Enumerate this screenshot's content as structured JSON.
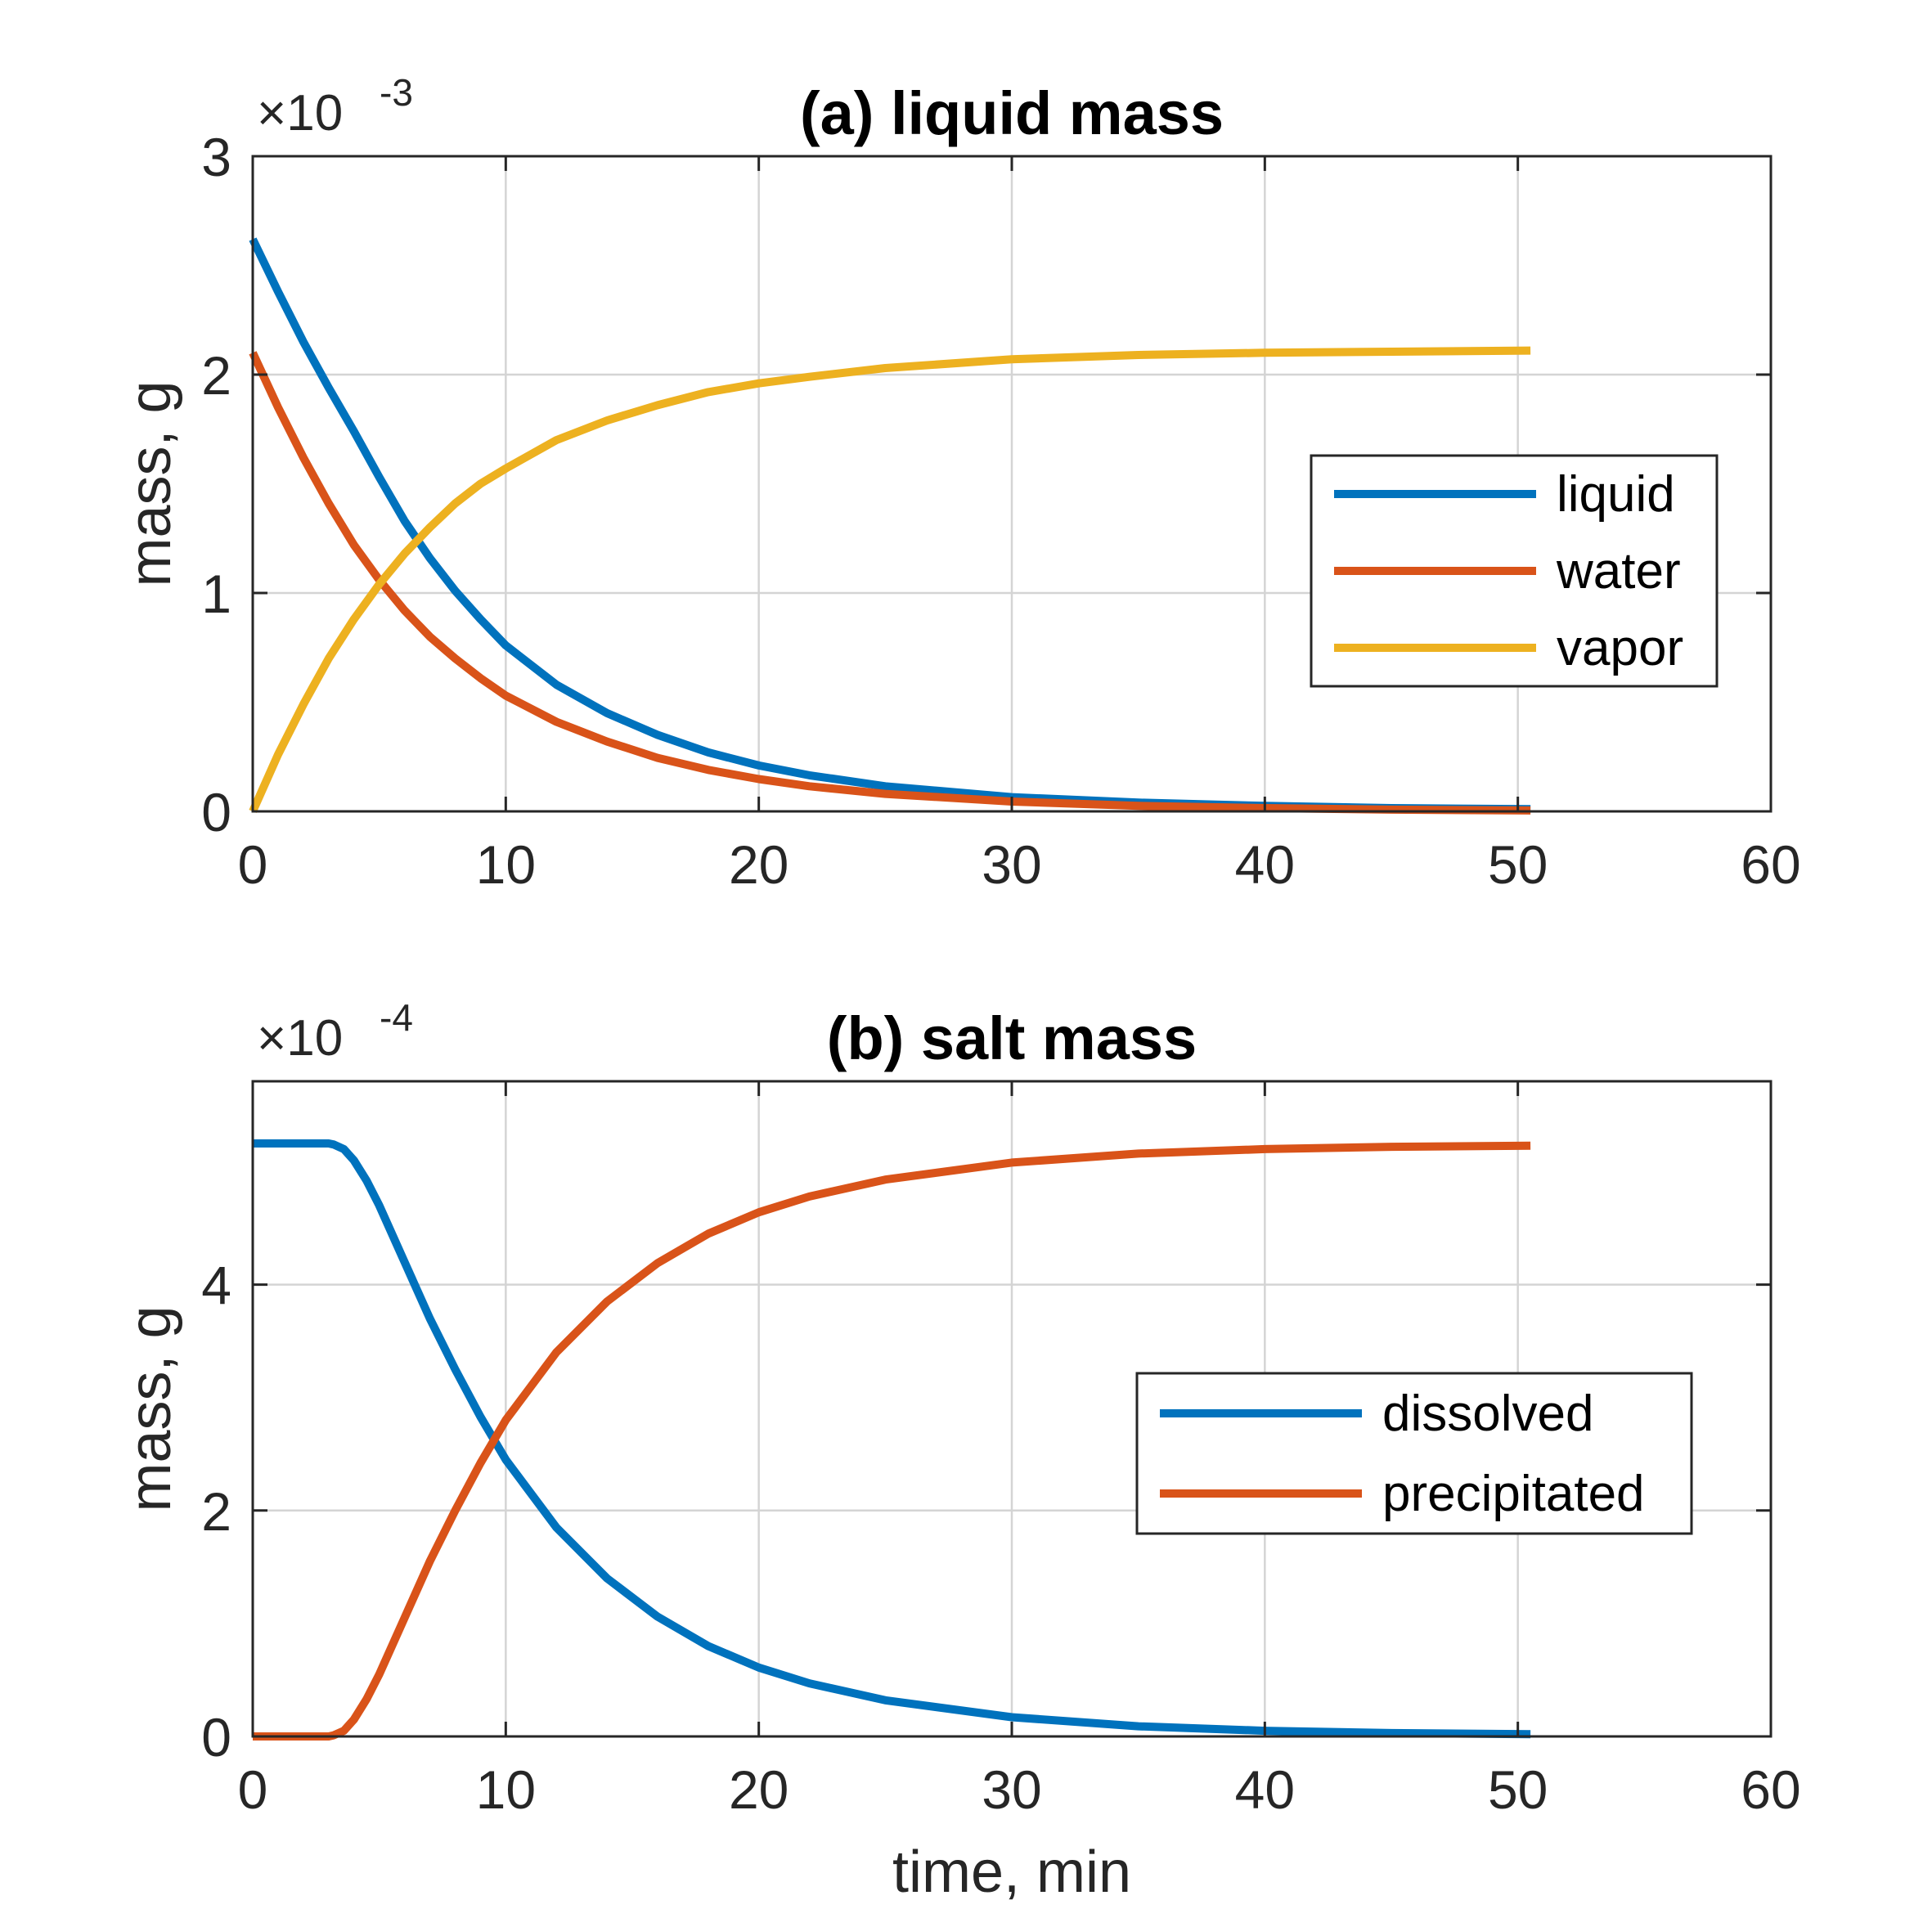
{
  "chart_data": [
    {
      "type": "line",
      "title": "(a) liquid mass",
      "xlabel": "",
      "ylabel": "mass, g",
      "xlim": [
        0,
        60
      ],
      "ylim": [
        0,
        3
      ],
      "xticks": [
        0,
        10,
        20,
        30,
        40,
        50,
        60
      ],
      "yticks": [
        0,
        1,
        2,
        3
      ],
      "y_exponent_base": "×10",
      "y_exponent_power": "-3",
      "grid": true,
      "legend_position": "right",
      "x": [
        0,
        1,
        2,
        3,
        4,
        5,
        6,
        7,
        8,
        9,
        10,
        12,
        14,
        16,
        18,
        20,
        22,
        25,
        30,
        35,
        40,
        45,
        50.5
      ],
      "series": [
        {
          "name": "liquid",
          "color": "#0072BD",
          "values": [
            2.62,
            2.38,
            2.15,
            1.94,
            1.74,
            1.53,
            1.33,
            1.16,
            1.01,
            0.88,
            0.76,
            0.58,
            0.45,
            0.35,
            0.27,
            0.21,
            0.165,
            0.115,
            0.065,
            0.04,
            0.025,
            0.015,
            0.01
          ]
        },
        {
          "name": "water",
          "color": "#D95319",
          "values": [
            2.1,
            1.85,
            1.62,
            1.41,
            1.22,
            1.06,
            0.92,
            0.8,
            0.7,
            0.61,
            0.53,
            0.41,
            0.32,
            0.245,
            0.19,
            0.148,
            0.115,
            0.08,
            0.045,
            0.025,
            0.015,
            0.008,
            0.004
          ]
        },
        {
          "name": "vapor",
          "color": "#EDB120",
          "values": [
            0.0,
            0.26,
            0.49,
            0.7,
            0.88,
            1.04,
            1.18,
            1.3,
            1.41,
            1.5,
            1.57,
            1.7,
            1.79,
            1.86,
            1.92,
            1.96,
            1.99,
            2.03,
            2.07,
            2.09,
            2.1,
            2.105,
            2.11
          ]
        }
      ]
    },
    {
      "type": "line",
      "title": "(b) salt mass",
      "xlabel": "time, min",
      "ylabel": "mass, g",
      "xlim": [
        0,
        60
      ],
      "ylim": [
        0,
        5.8
      ],
      "xticks": [
        0,
        10,
        20,
        30,
        40,
        50,
        60
      ],
      "yticks": [
        0,
        2,
        4
      ],
      "y_exponent_base": "×10",
      "y_exponent_power": "-4",
      "grid": true,
      "legend_position": "right",
      "x": [
        0,
        1,
        2,
        3,
        3.2,
        3.6,
        4,
        4.5,
        5,
        6,
        7,
        8,
        9,
        10,
        12,
        14,
        16,
        18,
        20,
        22,
        25,
        30,
        35,
        40,
        45,
        50.5
      ],
      "series": [
        {
          "name": "dissolved",
          "color": "#0072BD",
          "values": [
            5.25,
            5.25,
            5.25,
            5.25,
            5.24,
            5.2,
            5.1,
            4.92,
            4.7,
            4.2,
            3.7,
            3.25,
            2.83,
            2.45,
            1.85,
            1.4,
            1.06,
            0.8,
            0.61,
            0.47,
            0.32,
            0.17,
            0.09,
            0.05,
            0.03,
            0.02
          ]
        },
        {
          "name": "precipitated",
          "color": "#D95319",
          "values": [
            0.0,
            0.0,
            0.0,
            0.0,
            0.01,
            0.05,
            0.15,
            0.33,
            0.55,
            1.05,
            1.55,
            2.0,
            2.42,
            2.8,
            3.4,
            3.85,
            4.19,
            4.45,
            4.64,
            4.78,
            4.93,
            5.08,
            5.16,
            5.2,
            5.22,
            5.23
          ]
        }
      ]
    }
  ]
}
